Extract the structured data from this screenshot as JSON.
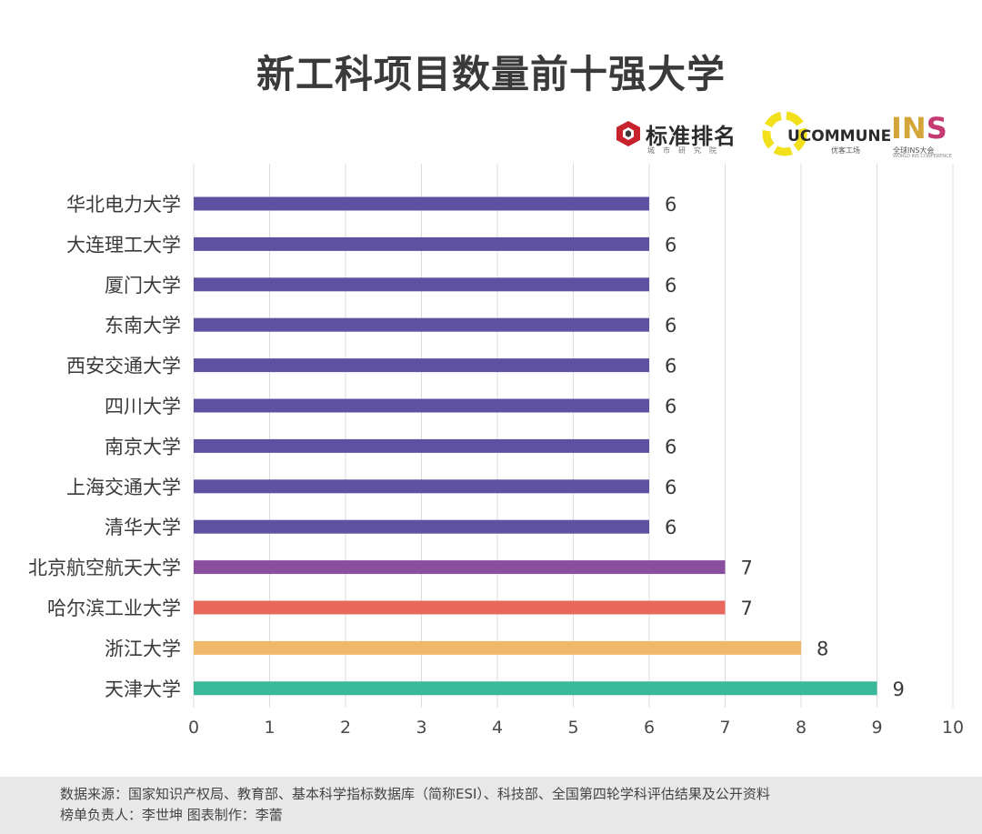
{
  "title": "新工科项目数量前十强大学",
  "logos": {
    "biaozhun": {
      "name": "标准排名",
      "sub": "城市研究院"
    },
    "ucommune": {
      "name": "UCOMMUNE",
      "sub": "优客工场"
    },
    "ins": {
      "name_main": "IN",
      "name_s": "S",
      "sub": "全球INS大会",
      "sub2": "WORLD INS CONFERENCE"
    }
  },
  "chart_data": {
    "type": "bar",
    "orientation": "horizontal",
    "categories": [
      "华北电力大学",
      "大连理工大学",
      "厦门大学",
      "东南大学",
      "西安交通大学",
      "四川大学",
      "南京大学",
      "上海交通大学",
      "清华大学",
      "北京航空航天大学",
      "哈尔滨工业大学",
      "浙江大学",
      "天津大学"
    ],
    "values": [
      6,
      6,
      6,
      6,
      6,
      6,
      6,
      6,
      6,
      7,
      7,
      8,
      9
    ],
    "colors": [
      "#5e52a0",
      "#5e52a0",
      "#5e52a0",
      "#5e52a0",
      "#5e52a0",
      "#5e52a0",
      "#5e52a0",
      "#5e52a0",
      "#5e52a0",
      "#8a4f9e",
      "#e8685c",
      "#f0b86a",
      "#3ab89a"
    ],
    "xlim": [
      0,
      10
    ],
    "xticks": [
      "0",
      "1",
      "2",
      "3",
      "4",
      "5",
      "6",
      "7",
      "8",
      "9",
      "10"
    ],
    "grid": "vertical",
    "data_labels": true
  },
  "footer": {
    "line1": "数据来源：国家知识产权局、教育部、基本科学指标数据库（简称ESI）、科技部、全国第四轮学科评估结果及公开资料",
    "line2": "榜单负责人：李世坤   图表制作：李蕾"
  }
}
